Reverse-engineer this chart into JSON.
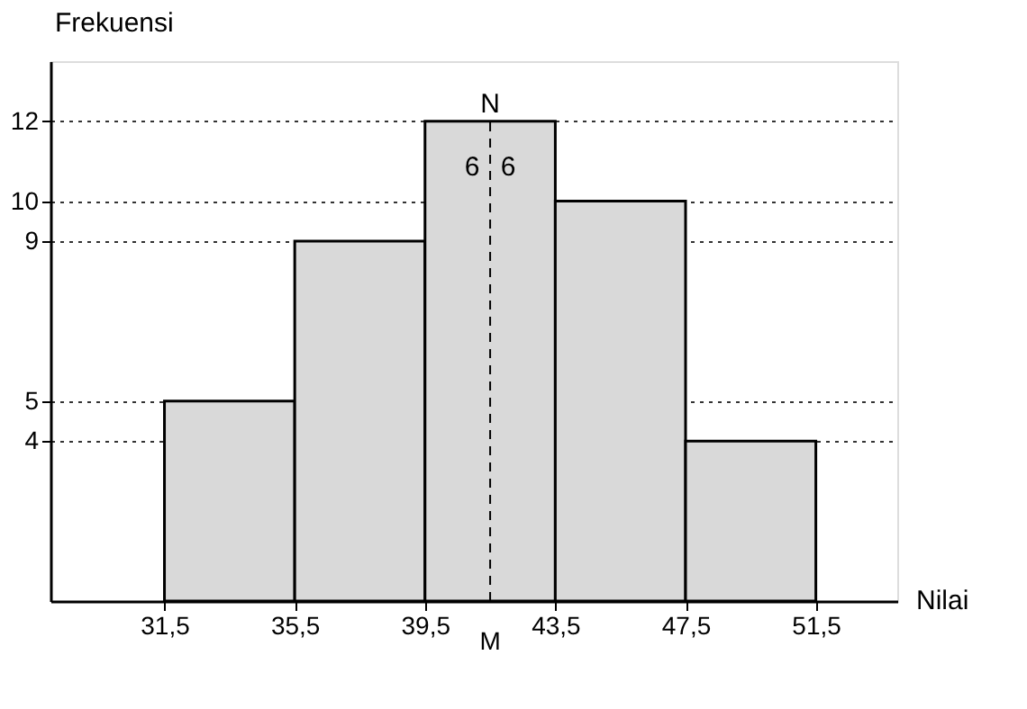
{
  "chart_data": {
    "type": "histogram",
    "xlabel": "Nilai",
    "ylabel": "Frekuensi",
    "bins": [
      31.5,
      35.5,
      39.5,
      43.5,
      47.5,
      51.5
    ],
    "values": [
      5,
      9,
      12,
      10,
      4
    ],
    "color": "#d9d9d9",
    "xlim": [
      28,
      54
    ],
    "ylim": [
      0,
      13.5
    ],
    "xticks": [
      {
        "value": 31.5,
        "label": "31,5"
      },
      {
        "value": 35.5,
        "label": "35,5"
      },
      {
        "value": 39.5,
        "label": "39,5"
      },
      {
        "value": 43.5,
        "label": "43,5"
      },
      {
        "value": 47.5,
        "label": "47,5"
      },
      {
        "value": 51.5,
        "label": "51,5"
      }
    ],
    "yticks": [
      4,
      5,
      9,
      10,
      12
    ],
    "grid": "y",
    "ref_lines": [
      {
        "axis": "x",
        "value": 41.5,
        "label": "M",
        "line_style": "dashed"
      }
    ],
    "annotations": [
      {
        "text": "N",
        "x": 41.5,
        "y": 12
      },
      "6",
      "6"
    ]
  }
}
